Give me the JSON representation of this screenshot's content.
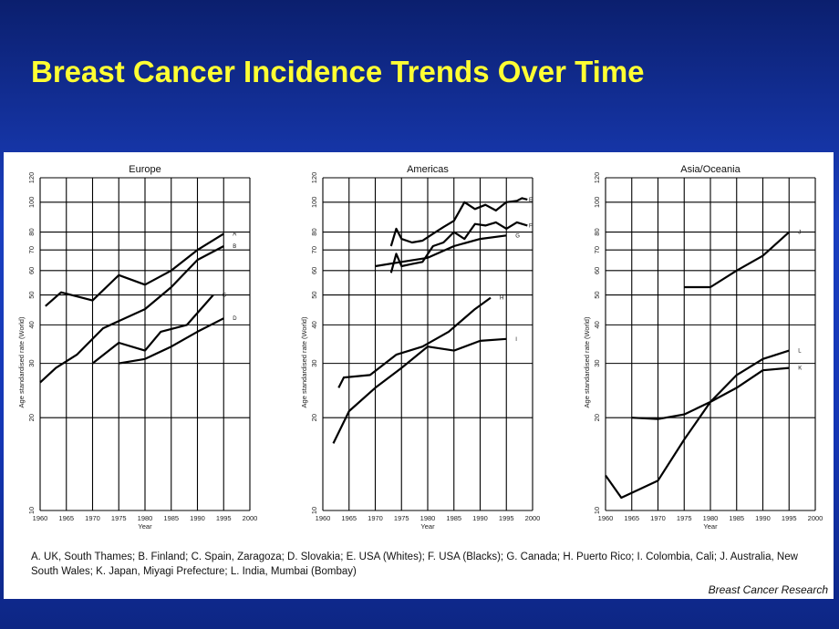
{
  "slide": {
    "title": "Breast Cancer Incidence Trends Over Time",
    "caption": "A. UK, South Thames; B. Finland; C. Spain, Zaragoza; D. Slovakia; E. USA (Whites); F. USA (Blacks); G. Canada; H. Puerto Rico; I. Colombia, Cali; J. Australia, New South Wales; K. Japan, Miyagi Prefecture; L. India, Mumbai (Bombay)",
    "credit": "Breast Cancer Research",
    "colors": {
      "background": "#1436b4",
      "title": "#ffff33",
      "figure_bg": "#ffffff",
      "line": "#000000"
    }
  },
  "chart_data": [
    {
      "type": "line",
      "title": "Europe",
      "xlabel": "Year",
      "ylabel": "Age standardised rate (World)",
      "xlim": [
        1960,
        2000
      ],
      "ylim": [
        10,
        120
      ],
      "yscale": "log",
      "xticks": [
        1960,
        1965,
        1970,
        1975,
        1980,
        1985,
        1990,
        1995,
        2000
      ],
      "yticks": [
        10,
        20,
        30,
        40,
        50,
        60,
        70,
        80,
        100,
        120
      ],
      "grid": true,
      "series": [
        {
          "name": "A",
          "x": [
            1961,
            1964,
            1970,
            1975,
            1980,
            1985,
            1990,
            1995
          ],
          "y": [
            46,
            51,
            48,
            58,
            54,
            60,
            70,
            79
          ]
        },
        {
          "name": "B",
          "x": [
            1960,
            1963,
            1967,
            1972,
            1980,
            1985,
            1990,
            1995
          ],
          "y": [
            26,
            29,
            32,
            39,
            45,
            53,
            65,
            72
          ]
        },
        {
          "name": "C",
          "x": [
            1970,
            1975,
            1980,
            1983,
            1988,
            1993
          ],
          "y": [
            30,
            35,
            33,
            38,
            40,
            50
          ]
        },
        {
          "name": "D",
          "x": [
            1975,
            1980,
            1985,
            1990,
            1995
          ],
          "y": [
            30,
            31,
            34,
            38,
            42
          ]
        }
      ]
    },
    {
      "type": "line",
      "title": "Americas",
      "xlabel": "Year",
      "ylabel": "Age standardised rate (World)",
      "xlim": [
        1960,
        2000
      ],
      "ylim": [
        10,
        120
      ],
      "yscale": "log",
      "xticks": [
        1960,
        1965,
        1970,
        1975,
        1980,
        1985,
        1990,
        1995,
        2000
      ],
      "yticks": [
        10,
        20,
        30,
        40,
        50,
        60,
        70,
        80,
        100,
        120
      ],
      "grid": true,
      "series": [
        {
          "name": "E",
          "x": [
            1973,
            1974,
            1975,
            1977,
            1979,
            1981,
            1983,
            1985,
            1987,
            1989,
            1991,
            1993,
            1995,
            1997,
            1998,
            1999
          ],
          "y": [
            72,
            82,
            76,
            74,
            75,
            79,
            83,
            87,
            100,
            95,
            98,
            94,
            100,
            101,
            103,
            102
          ]
        },
        {
          "name": "F",
          "x": [
            1973,
            1974,
            1975,
            1977,
            1979,
            1981,
            1983,
            1985,
            1987,
            1989,
            1991,
            1993,
            1995,
            1997,
            1999
          ],
          "y": [
            59,
            68,
            62,
            63,
            64,
            72,
            74,
            80,
            76,
            85,
            84,
            86,
            82,
            86,
            84
          ]
        },
        {
          "name": "G",
          "x": [
            1970,
            1975,
            1980,
            1985,
            1990,
            1995
          ],
          "y": [
            62,
            64,
            66,
            72,
            76,
            78
          ]
        },
        {
          "name": "H",
          "x": [
            1963,
            1964,
            1969,
            1974,
            1979,
            1984,
            1989,
            1992
          ],
          "y": [
            25,
            27,
            27.5,
            32,
            34,
            38,
            45,
            49
          ]
        },
        {
          "name": "I",
          "x": [
            1962,
            1965,
            1970,
            1975,
            1980,
            1985,
            1990,
            1995
          ],
          "y": [
            16.5,
            21,
            25,
            29,
            34,
            33,
            35.5,
            36
          ]
        }
      ]
    },
    {
      "type": "line",
      "title": "Asia/Oceania",
      "xlabel": "Year",
      "ylabel": "Age standardised rate (World)",
      "xlim": [
        1960,
        2000
      ],
      "ylim": [
        10,
        120
      ],
      "yscale": "log",
      "xticks": [
        1960,
        1965,
        1970,
        1975,
        1980,
        1985,
        1990,
        1995,
        2000
      ],
      "yticks": [
        10,
        20,
        30,
        40,
        50,
        60,
        70,
        80,
        100,
        120
      ],
      "grid": true,
      "series": [
        {
          "name": "J",
          "x": [
            1975,
            1980,
            1985,
            1990,
            1995
          ],
          "y": [
            53,
            53,
            60,
            67,
            80
          ]
        },
        {
          "name": "K",
          "x": [
            1965,
            1970,
            1975,
            1980,
            1985,
            1990,
            1995
          ],
          "y": [
            20,
            19.8,
            20.5,
            22.5,
            25,
            28.5,
            29
          ]
        },
        {
          "name": "L",
          "x": [
            1960,
            1963,
            1970,
            1975,
            1980,
            1985,
            1990,
            1995
          ],
          "y": [
            13,
            11,
            12.5,
            17,
            22.5,
            27.5,
            31,
            33
          ]
        }
      ]
    }
  ]
}
